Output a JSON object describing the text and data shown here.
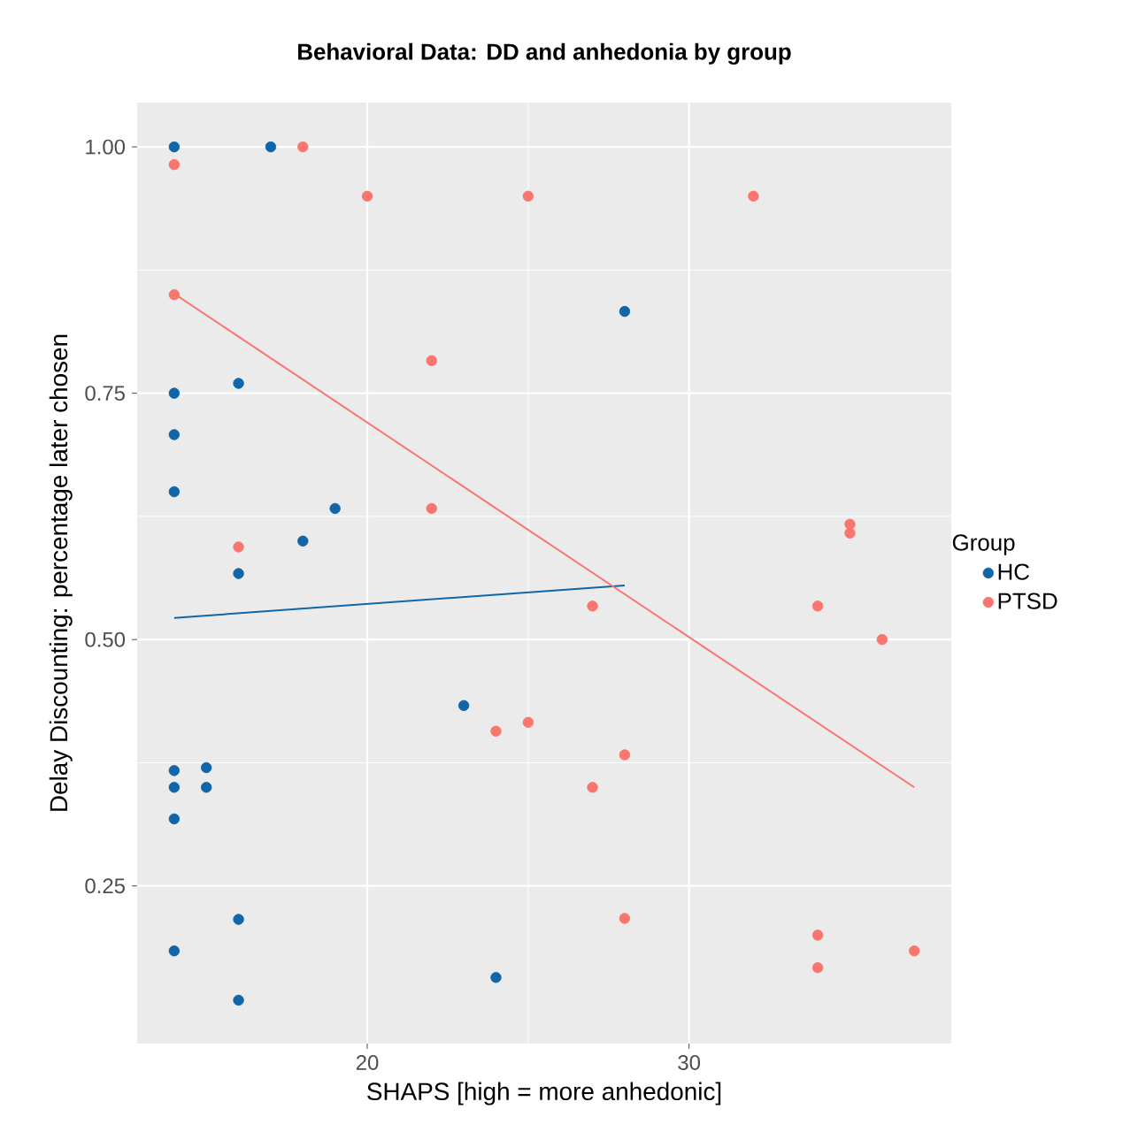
{
  "chart_data": {
    "type": "scatter",
    "title": "Behavioral Data: DD and anhedonia by group",
    "xlabel": "SHAPS [high = more anhedonic]",
    "ylabel": "Delay Discounting: percentage later chosen",
    "legend_title": "Group",
    "legend": "right",
    "grid": true,
    "xlim": [
      12.85,
      38.15
    ],
    "ylim": [
      0.09,
      1.045
    ],
    "xticks": [
      20,
      30
    ],
    "yticks": [
      {
        "value": 0.25,
        "label": "0.25"
      },
      {
        "value": 0.5,
        "label": "0.50"
      },
      {
        "value": 0.75,
        "label": "0.75"
      },
      {
        "value": 1.0,
        "label": "1.00"
      }
    ],
    "series": [
      {
        "name": "HC",
        "marker": "circle",
        "color": "#1066a8",
        "x": [
          14,
          17,
          14,
          14,
          14,
          16,
          14,
          14,
          14,
          15,
          15,
          14,
          16,
          16,
          16,
          18,
          19,
          23,
          24,
          28
        ],
        "values": [
          1.0,
          1.0,
          0.75,
          0.708,
          0.65,
          0.76,
          0.367,
          0.35,
          0.318,
          0.37,
          0.35,
          0.184,
          0.216,
          0.134,
          0.567,
          0.6,
          0.633,
          0.433,
          0.157,
          0.833
        ]
      },
      {
        "name": "PTSD",
        "marker": "circle",
        "color": "#f8766d",
        "x": [
          14,
          14,
          18,
          20,
          25,
          32,
          35,
          35,
          22,
          22,
          16,
          27,
          34,
          36,
          25,
          28,
          27,
          24,
          28,
          34,
          34,
          37
        ],
        "values": [
          0.982,
          0.85,
          1.0,
          0.95,
          0.95,
          0.95,
          0.617,
          0.608,
          0.783,
          0.633,
          0.594,
          0.534,
          0.534,
          0.5,
          0.416,
          0.383,
          0.35,
          0.407,
          0.217,
          0.2,
          0.167,
          0.184
        ]
      },
      {
        "type": "line",
        "marker": "none",
        "color": "#1066a8",
        "x": [
          14,
          28
        ],
        "values": [
          0.522,
          0.555
        ]
      },
      {
        "type": "line",
        "marker": "none",
        "color": "#f8766d",
        "x": [
          14,
          37
        ],
        "values": [
          0.851,
          0.35
        ]
      }
    ]
  }
}
